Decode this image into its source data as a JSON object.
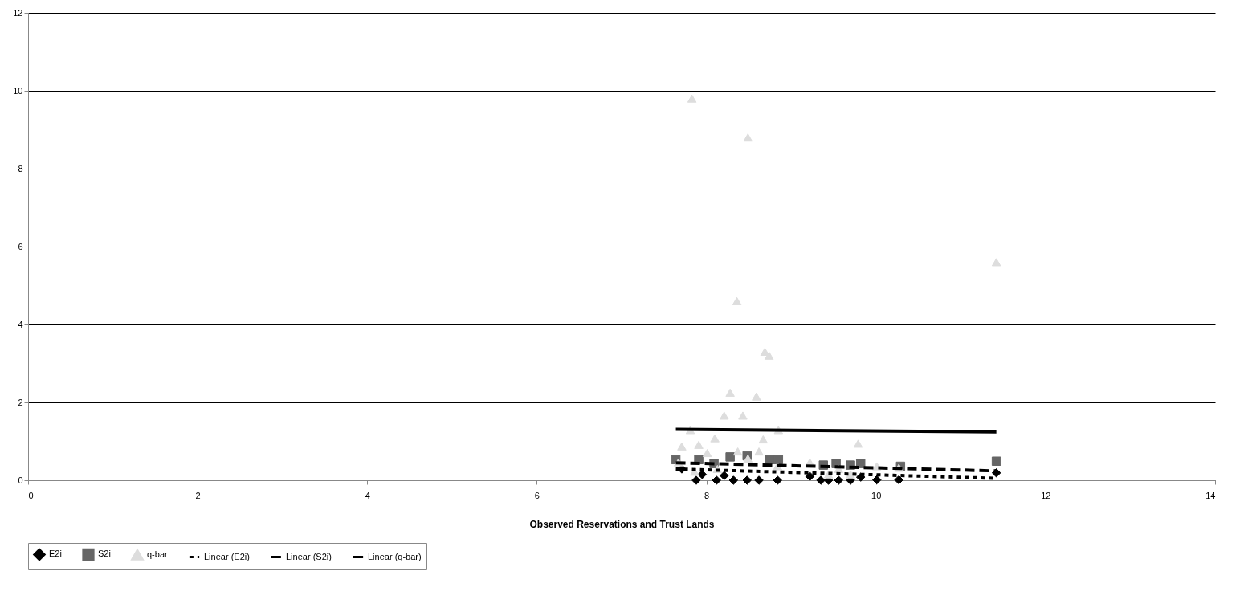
{
  "chart_data": {
    "type": "scatter",
    "xlabel": "Observed Reservations and Trust Lands",
    "xlim": [
      0,
      14
    ],
    "xticks": [
      0,
      2,
      4,
      6,
      8,
      10,
      12,
      14
    ],
    "ylim": [
      0,
      12
    ],
    "yticks": [
      0,
      2,
      4,
      6,
      8,
      10,
      12
    ],
    "grid": "y",
    "legend": "bottom",
    "series": [
      {
        "name": "E2i",
        "color": "#000000",
        "marker": "diamond",
        "x": [
          7.71,
          7.88,
          7.95,
          8.12,
          8.21,
          8.32,
          8.48,
          8.62,
          8.84,
          9.22,
          9.35,
          9.44,
          9.56,
          9.7,
          9.82,
          10.01,
          10.27,
          11.42
        ],
        "values": [
          0.29,
          0.0,
          0.15,
          0.0,
          0.12,
          0.0,
          0.0,
          0.0,
          0.0,
          0.1,
          0.0,
          0.0,
          0.0,
          0.0,
          0.08,
          0.01,
          0.01,
          0.19
        ]
      },
      {
        "name": "S2i",
        "color": "#666666",
        "marker": "square",
        "x": [
          7.64,
          7.91,
          8.09,
          8.28,
          8.48,
          8.75,
          8.85,
          9.22,
          9.38,
          9.53,
          9.7,
          9.82,
          10.01,
          10.29,
          11.42
        ],
        "values": [
          0.53,
          0.53,
          0.43,
          0.6,
          0.63,
          0.53,
          0.53,
          null,
          0.39,
          0.43,
          0.39,
          0.43,
          null,
          0.36,
          0.49
        ]
      },
      {
        "name": "q-bar",
        "color": "#dddddd",
        "marker": "triangle",
        "x": [
          7.83,
          8.49,
          11.42,
          8.36,
          8.69,
          8.74,
          8.28,
          8.59,
          8.21,
          8.43,
          7.81,
          8.1,
          8.85,
          8.67,
          9.79,
          7.71,
          7.91,
          8.01,
          8.37,
          8.62,
          8.49,
          9.22,
          10.01,
          10.27,
          7.86,
          8.13,
          8.84,
          9.44,
          9.7,
          9.56,
          7.67
        ],
        "values": [
          9.8,
          8.8,
          5.6,
          4.6,
          3.3,
          3.2,
          2.25,
          2.15,
          1.66,
          1.66,
          1.29,
          1.08,
          1.29,
          1.05,
          0.94,
          0.87,
          0.91,
          0.7,
          0.74,
          0.74,
          0.56,
          0.46,
          0.36,
          0.32,
          0.22,
          0.29,
          0.36,
          0.15,
          0.15,
          0.29,
          0.46
        ]
      },
      {
        "name": "Linear (E2i)",
        "type": "line",
        "color": "#000000",
        "line_style": "dotted",
        "x": [
          7.64,
          11.42
        ],
        "values": [
          0.29,
          0.05
        ]
      },
      {
        "name": "Linear (S2i)",
        "type": "line",
        "color": "#000000",
        "line_style": "dashed",
        "x": [
          7.64,
          11.42
        ],
        "values": [
          0.45,
          0.24
        ]
      },
      {
        "name": "Linear (q-bar)",
        "type": "line",
        "color": "#000000",
        "line_style": "solid",
        "x": [
          7.64,
          11.42
        ],
        "values": [
          1.31,
          1.24
        ]
      }
    ]
  }
}
